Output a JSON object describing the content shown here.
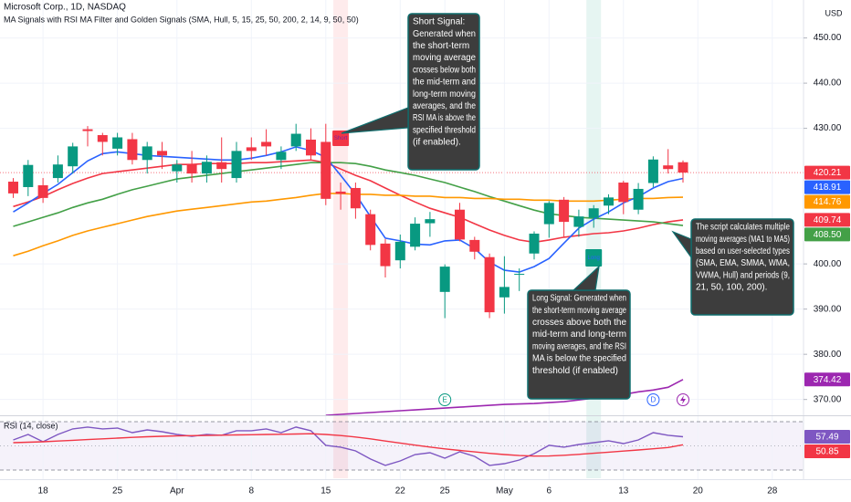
{
  "header": {
    "symbol": "Microsoft Corp., 1D, NASDAQ",
    "indicator": "MA Signals with RSI MA Filter and Golden Signals (SMA, Hull, 5, 15, 25, 50, 200, 2, 14, 9, 50, 50)",
    "currency": "USD"
  },
  "chart_data": [
    {
      "type": "candlestick",
      "categories": [
        null,
        null,
        "18",
        null,
        null,
        null,
        null,
        "25",
        null,
        null,
        null,
        "Apr",
        null,
        null,
        null,
        null,
        "8",
        null,
        null,
        null,
        null,
        "15",
        null,
        null,
        null,
        null,
        "22",
        null,
        null,
        "25",
        null,
        null,
        null,
        "May",
        null,
        null,
        "6",
        null,
        null,
        null,
        null,
        "13",
        null,
        null,
        null,
        null,
        "20",
        null,
        null,
        null,
        null,
        "28"
      ],
      "open": [
        418.2,
        417,
        417.4,
        419,
        421.6,
        429.8,
        428.5,
        425.5,
        427.6,
        423,
        425,
        420.5,
        422,
        420,
        422.5,
        419,
        425.8,
        427,
        423,
        426,
        427.5,
        427,
        416,
        416.8,
        411,
        404.5,
        400.8,
        403.8,
        409,
        393.8,
        412,
        405.3,
        401.5,
        392.6,
        397.7,
        402.3,
        408.8,
        414.2,
        408.2,
        410.2,
        412.9,
        418,
        412,
        417.9,
        421.8,
        422.5,
        null,
        null,
        null,
        null,
        null,
        null
      ],
      "high": [
        419,
        423,
        419,
        424,
        426.8,
        430.5,
        429,
        429,
        429,
        427,
        427,
        423,
        425,
        424,
        428,
        427,
        428,
        429.8,
        426,
        431,
        430,
        431,
        418,
        418,
        412,
        405.5,
        406.5,
        410.3,
        411.5,
        399.9,
        413.5,
        406,
        402.3,
        401.7,
        399,
        407.2,
        413.9,
        414.8,
        412,
        413,
        415.4,
        418.4,
        417.9,
        423.8,
        425.4,
        422.9,
        null,
        null,
        null,
        null,
        null,
        null
      ],
      "low": [
        414.6,
        415,
        413.5,
        418,
        420,
        426,
        424,
        424,
        422,
        420,
        421,
        418,
        418,
        418,
        418,
        418,
        423,
        424,
        421,
        425,
        423,
        413,
        412,
        410,
        403,
        397,
        399,
        403,
        406,
        388,
        405,
        401,
        388,
        389,
        394,
        401,
        405.8,
        406,
        406,
        408,
        411,
        411,
        411,
        417,
        420,
        418,
        null,
        null,
        null,
        null,
        null,
        null
      ],
      "close": [
        415.6,
        421.9,
        414.6,
        422,
        426,
        429.4,
        427,
        428,
        423,
        426,
        424,
        422,
        420,
        422.6,
        421,
        425,
        425,
        426,
        424.8,
        428.8,
        424,
        414.4,
        415.5,
        412.3,
        404.2,
        399.5,
        404.9,
        408.9,
        409.9,
        399.4,
        405.4,
        402.7,
        389.3,
        394.9,
        397.8,
        406.7,
        413.5,
        409.3,
        410.5,
        412.3,
        414.7,
        413.7,
        416.6,
        423.1,
        420.99,
        420.21,
        null,
        null,
        null,
        null,
        null,
        null
      ],
      "last_label": "420.21",
      "up_color": "#089981",
      "down_color": "#f23645",
      "ylim": [
        366.5,
        458.4
      ],
      "yticks": [
        {
          "value": 370,
          "label": "370.00"
        },
        {
          "value": 380,
          "label": "380.00"
        },
        {
          "value": 390,
          "label": "390.00"
        },
        {
          "value": 400,
          "label": "400.00"
        },
        {
          "value": 430,
          "label": "430.00"
        },
        {
          "value": 440,
          "label": "440.00"
        },
        {
          "value": 450,
          "label": "450.00"
        }
      ],
      "grid": true,
      "series": [
        {
          "color": "#f23645",
          "last_label": "409.74",
          "values": [
            412.7,
            413.7,
            414.9,
            416.4,
            417.8,
            419,
            420,
            420.4,
            420.8,
            421.2,
            421.6,
            422,
            422,
            422.2,
            422.2,
            422.2,
            422.4,
            422.4,
            422.6,
            422.8,
            423,
            422.4,
            421,
            419.6,
            418.4,
            416.8,
            415.2,
            413.7,
            412.3,
            411.3,
            410.3,
            408.9,
            407.5,
            406.3,
            405.3,
            404.8,
            405.3,
            405.9,
            406.3,
            406.7,
            406.9,
            407.3,
            407.9,
            408.7,
            409.3,
            409.74,
            null,
            null,
            null,
            null,
            null,
            null
          ]
        },
        {
          "color": "#43a047",
          "last_label": "408.50",
          "values": [
            408.3,
            409.3,
            410.3,
            411.3,
            412.5,
            413.5,
            414.3,
            415.4,
            416.4,
            417.2,
            418,
            418.8,
            419.2,
            419.6,
            420,
            420.4,
            420.8,
            421.2,
            421.6,
            422,
            422.4,
            422.4,
            422.4,
            422.2,
            421.6,
            420.8,
            420.2,
            419.6,
            418.8,
            418,
            417,
            416,
            414.9,
            413.9,
            412.9,
            411.9,
            411.1,
            410.7,
            410.3,
            410.1,
            409.9,
            409.7,
            409.5,
            409.3,
            408.9,
            408.5,
            null,
            null,
            null,
            null,
            null,
            null
          ]
        },
        {
          "color": "#ff9800",
          "last_label": "414.76",
          "values": [
            401.8,
            402.8,
            404,
            405.1,
            406.3,
            407.3,
            408.1,
            408.9,
            409.7,
            410.5,
            411.1,
            411.7,
            412.1,
            412.5,
            412.9,
            413.3,
            413.7,
            413.9,
            414.3,
            414.7,
            415.2,
            415.6,
            415.6,
            415.4,
            415.4,
            415.2,
            415.2,
            415,
            415,
            414.7,
            414.7,
            414.5,
            414.5,
            414.3,
            414.3,
            414.1,
            414.1,
            413.9,
            413.9,
            413.9,
            414.1,
            414.3,
            414.5,
            414.5,
            414.7,
            414.76,
            null,
            null,
            null,
            null,
            null,
            null
          ]
        },
        {
          "color": "#9c27b0",
          "last_label": "374.42",
          "values": [
            null,
            null,
            null,
            null,
            null,
            null,
            null,
            null,
            null,
            null,
            null,
            null,
            null,
            null,
            null,
            null,
            null,
            null,
            null,
            null,
            null,
            366.5,
            366.7,
            366.9,
            367.1,
            367.3,
            367.5,
            367.7,
            367.9,
            368.1,
            368.3,
            368.5,
            368.7,
            368.9,
            369,
            369.1,
            369.3,
            369.5,
            369.9,
            370.3,
            370.7,
            371.1,
            371.7,
            372.1,
            372.7,
            374.42,
            null,
            null,
            null,
            null,
            null,
            null
          ]
        },
        {
          "color": "#2962ff",
          "last_label": "418.91",
          "values": [
            411.5,
            413.5,
            415.6,
            417.6,
            420.2,
            422.8,
            424.4,
            424.8,
            424.4,
            424,
            423.8,
            423.6,
            423.4,
            423.2,
            423,
            423,
            423.4,
            424,
            424.8,
            425.9,
            425.1,
            423.6,
            419.6,
            415.4,
            410.5,
            405.7,
            405.1,
            404.4,
            404.2,
            405.1,
            405.3,
            403.4,
            400.4,
            398.6,
            398.2,
            399.4,
            401.2,
            404.6,
            407.9,
            409.9,
            411.5,
            413.5,
            414.9,
            416.8,
            418.2,
            418.91,
            null,
            null,
            null,
            null,
            null,
            null
          ]
        }
      ],
      "signals": [
        {
          "label": "Short",
          "index": 22,
          "color": "#f23645"
        },
        {
          "label": "Long",
          "index": 39,
          "color": "#089981"
        }
      ],
      "events": [
        {
          "label": "E",
          "index": 29,
          "color": "#089981"
        },
        {
          "label": "D",
          "index": 43,
          "color": "#2962ff"
        }
      ],
      "annotations": [
        {
          "lines": [
            "Short Signal:",
            "Generated when",
            "the short-term",
            "moving average",
            "crosses below both",
            "the mid-term and",
            "long-term moving",
            "averages, and the",
            "RSI MA is above the",
            "specified threshold",
            "(if enabled)."
          ]
        },
        {
          "lines": [
            "Long Signal: Generated when",
            "the short-term moving average",
            "crosses above both the",
            "mid-term and long-term",
            "moving averages, and the RSI",
            "MA is below the specified",
            "threshold (if enabled)"
          ]
        },
        {
          "lines": [
            "The script calculates multiple",
            "moving averages (MA1 to MA5)",
            "based on user-selected types",
            "(SMA, EMA, SMMA, WMA,",
            "VWMA, Hull) and periods (9,",
            "21, 50, 100, 200)."
          ]
        }
      ]
    },
    {
      "type": "line",
      "title": "RSI (14, close)",
      "ylim": [
        23.2,
        74.5
      ],
      "bands": [
        30,
        70
      ],
      "midline": 50,
      "band_color": "#7e57c2",
      "series": [
        {
          "color": "#7e57c2",
          "last_label": "57.49",
          "values": [
            54.9,
            59.4,
            53.4,
            59.4,
            64,
            65.5,
            64,
            64.7,
            60.9,
            63.2,
            61.7,
            59.4,
            57.9,
            59.4,
            58.7,
            62.5,
            62.5,
            64,
            60.9,
            65.5,
            62.5,
            50.4,
            48.9,
            45.8,
            39.1,
            33.8,
            37.5,
            42.8,
            44.3,
            39.8,
            45.1,
            41.3,
            33.8,
            35.3,
            38.3,
            43.6,
            50.4,
            48.9,
            51.1,
            52.6,
            54.2,
            51.9,
            54.9,
            60.9,
            58.7,
            57.49,
            null,
            null,
            null,
            null,
            null,
            null
          ]
        },
        {
          "color": "#f23645",
          "last_label": "50.85",
          "values": [
            52.6,
            53,
            53.4,
            54,
            54.6,
            55.2,
            55.8,
            56.4,
            57,
            57.5,
            57.9,
            58.2,
            58.4,
            58.6,
            58.8,
            59,
            59.2,
            59.4,
            59.6,
            59.8,
            60,
            59.4,
            58.5,
            57.3,
            55.8,
            54,
            52.3,
            50.6,
            49,
            47.5,
            46.2,
            45,
            43.8,
            42.8,
            42,
            41.5,
            41.6,
            42.2,
            43,
            43.9,
            44.8,
            45.7,
            46.6,
            47.6,
            48.6,
            50.85,
            null,
            null,
            null,
            null,
            null,
            null
          ]
        }
      ]
    }
  ]
}
